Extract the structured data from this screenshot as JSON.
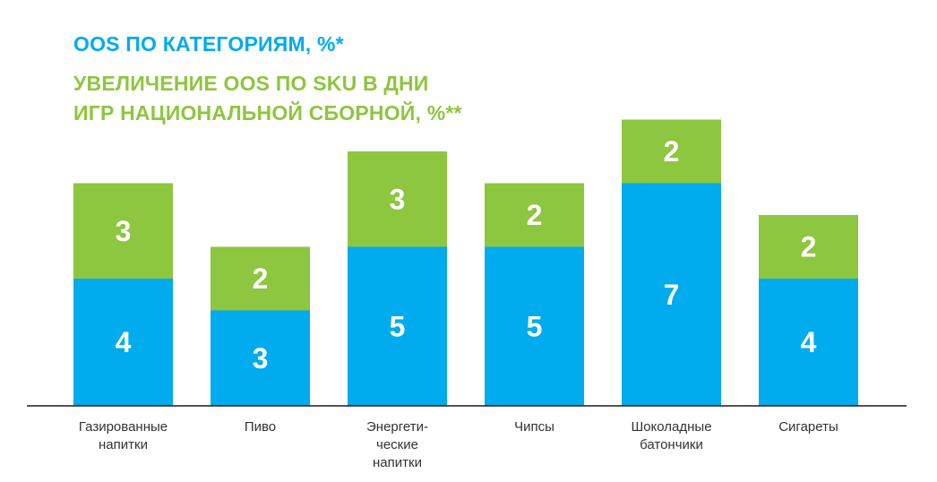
{
  "chart_data": {
    "type": "bar",
    "stacked": true,
    "legend_entries": [
      {
        "label": "OOS по категориям, %*",
        "color": "#00abee"
      },
      {
        "label": "Увеличение OOS по SKU в дни игр национальной сборной, %**",
        "color": "#8dc63f"
      }
    ],
    "categories": [
      [
        "Газированные",
        "напитки"
      ],
      [
        "Пиво"
      ],
      [
        "Энергети-",
        "ческие",
        "напитки"
      ],
      [
        "Чипсы"
      ],
      [
        "Шоколадные",
        "батончики"
      ],
      [
        "Сигареты"
      ]
    ],
    "series": [
      {
        "name": "OOS по категориям, %*",
        "color": "#00abee",
        "values": [
          4,
          3,
          5,
          5,
          7,
          4
        ]
      },
      {
        "name": "Увеличение OOS по SKU в дни игр национальной сборной, %**",
        "color": "#8dc63f",
        "values": [
          3,
          2,
          3,
          2,
          2,
          2
        ]
      }
    ],
    "ylim": [
      0,
      9
    ],
    "grid": false,
    "legend_position": "top-left"
  }
}
